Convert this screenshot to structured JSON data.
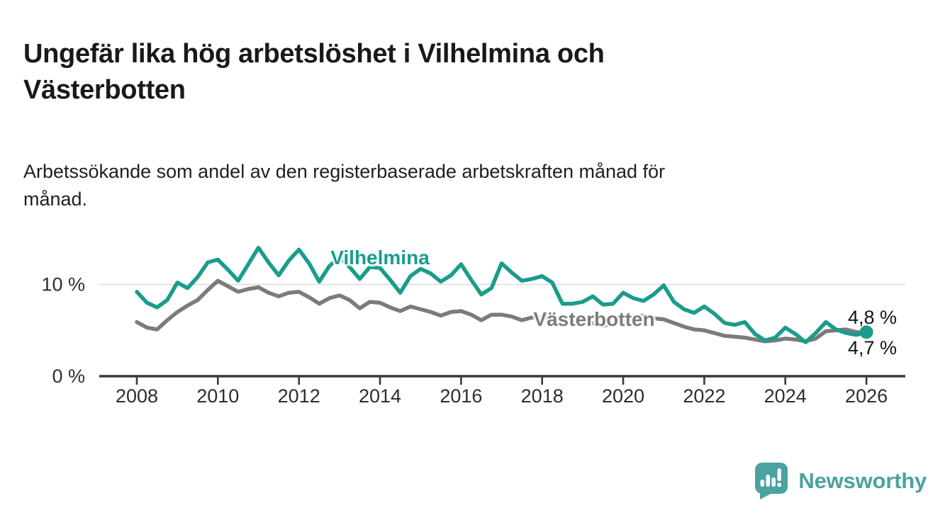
{
  "colors": {
    "vilhelmina": "#1A9C8B",
    "vasterbotten": "#7B7B7B",
    "brand": "#4CA1A1",
    "axis": "#3A3A3A",
    "gridline": "#DBDBDB",
    "tick_text": "#2D2D2D"
  },
  "footer": {
    "brand": "Newsworthy",
    "logo_icon": "bar-chart-speech-bubble-icon"
  },
  "chart_data": {
    "type": "line",
    "title": "Ungefär lika hög arbetslöshet i Vilhelmina och\nVästerbotten",
    "subtitle": "Arbetssökande som andel av den registerbaserade arbetskraften månad för\nmånad.",
    "unit": "%",
    "grid": "horizontal-only",
    "legend_position": "inline-labels",
    "x_axis": {
      "ticks": [
        2008,
        2010,
        2012,
        2014,
        2016,
        2018,
        2020,
        2022,
        2024,
        2026
      ],
      "tick_labels": [
        "2008",
        "2010",
        "2012",
        "2014",
        "2016",
        "2018",
        "2020",
        "2022",
        "2024",
        "2026"
      ],
      "range": [
        2007.1,
        2027.0
      ]
    },
    "y_axis": {
      "ticks": [
        {
          "value": 0,
          "label": "0 %"
        },
        {
          "value": 10,
          "label": "10 %"
        }
      ],
      "gridlines": [
        10
      ],
      "range": [
        0,
        14.8
      ]
    },
    "x": [
      2008,
      2008.25,
      2008.5,
      2008.75,
      2009,
      2009.25,
      2009.5,
      2009.75,
      2010,
      2010.25,
      2010.5,
      2010.75,
      2011,
      2011.25,
      2011.5,
      2011.75,
      2012,
      2012.25,
      2012.5,
      2012.75,
      2013,
      2013.25,
      2013.5,
      2013.75,
      2014,
      2014.25,
      2014.5,
      2014.75,
      2015,
      2015.25,
      2015.5,
      2015.75,
      2016,
      2016.25,
      2016.5,
      2016.75,
      2017,
      2017.25,
      2017.5,
      2017.75,
      2018,
      2018.25,
      2018.5,
      2018.75,
      2019,
      2019.25,
      2019.5,
      2019.75,
      2020,
      2020.25,
      2020.5,
      2020.75,
      2021,
      2021.25,
      2021.5,
      2021.75,
      2022,
      2022.25,
      2022.5,
      2022.75,
      2023,
      2023.25,
      2023.5,
      2023.75,
      2024,
      2024.25,
      2024.5,
      2024.75,
      2025,
      2025.25,
      2025.5,
      2025.75,
      2026
    ],
    "series": [
      {
        "name": "Vilhelmina",
        "label": "Vilhelmina",
        "color": "#1A9C8B",
        "end_dot": true,
        "end_label": "4,8 %",
        "latest_value": 4.8,
        "values": [
          9.2,
          8.0,
          7.5,
          8.3,
          10.2,
          9.6,
          10.8,
          12.4,
          12.7,
          11.6,
          10.4,
          12.2,
          14.0,
          12.4,
          11.0,
          12.6,
          13.8,
          12.3,
          10.3,
          12.0,
          13.0,
          11.9,
          10.6,
          11.9,
          11.8,
          10.5,
          9.1,
          10.9,
          11.7,
          11.2,
          10.3,
          11.0,
          12.2,
          10.5,
          8.9,
          9.6,
          12.3,
          11.3,
          10.4,
          10.6,
          10.9,
          10.2,
          7.9,
          7.9,
          8.1,
          8.7,
          7.8,
          7.9,
          9.1,
          8.5,
          8.2,
          8.9,
          9.9,
          8.1,
          7.3,
          6.9,
          7.6,
          6.8,
          5.8,
          5.6,
          5.9,
          4.6,
          3.9,
          4.2,
          5.3,
          4.6,
          3.7,
          4.7,
          5.9,
          5.1,
          4.7,
          4.5,
          4.8
        ]
      },
      {
        "name": "Västerbotten",
        "label": "Västerbotten",
        "color": "#7B7B7B",
        "end_dot": false,
        "end_label": "4,7 %",
        "latest_value": 4.7,
        "values": [
          5.9,
          5.3,
          5.1,
          6.1,
          7.0,
          7.7,
          8.3,
          9.4,
          10.4,
          9.8,
          9.2,
          9.5,
          9.7,
          9.1,
          8.7,
          9.1,
          9.2,
          8.6,
          7.9,
          8.5,
          8.8,
          8.3,
          7.4,
          8.1,
          8.0,
          7.5,
          7.1,
          7.6,
          7.3,
          7.0,
          6.6,
          7.0,
          7.1,
          6.7,
          6.1,
          6.7,
          6.7,
          6.5,
          6.1,
          6.4,
          6.4,
          6.2,
          5.7,
          5.9,
          6.0,
          5.8,
          5.5,
          5.7,
          5.9,
          6.5,
          6.6,
          6.3,
          6.2,
          5.8,
          5.4,
          5.1,
          5.0,
          4.7,
          4.4,
          4.3,
          4.2,
          4.0,
          3.8,
          3.9,
          4.1,
          4.0,
          3.8,
          4.1,
          4.9,
          5.0,
          5.1,
          4.8,
          4.7
        ]
      }
    ]
  }
}
